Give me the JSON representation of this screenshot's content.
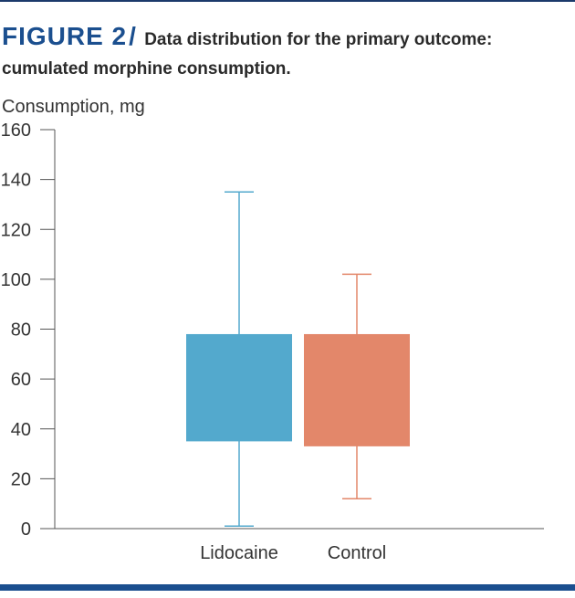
{
  "figure": {
    "label": "FIGURE 2",
    "caption": "Data distribution for the primary outcome: cumulated morphine consumption."
  },
  "chart_data": {
    "type": "boxplot",
    "title": "",
    "xlabel": "",
    "ylabel": "Consumption, mg",
    "ylim": [
      0,
      160
    ],
    "yticks": [
      0,
      20,
      40,
      60,
      80,
      100,
      120,
      140,
      160
    ],
    "grid": false,
    "legend": "none",
    "categories": [
      "Lidocaine",
      "Control"
    ],
    "series": [
      {
        "category": "Lidocaine",
        "min": 1,
        "q1": 35,
        "q3": 78,
        "max": 135,
        "color": "#53a9cd"
      },
      {
        "category": "Control",
        "min": 12,
        "q1": 33,
        "q3": 78,
        "max": 102,
        "color": "#e3876a"
      }
    ]
  }
}
